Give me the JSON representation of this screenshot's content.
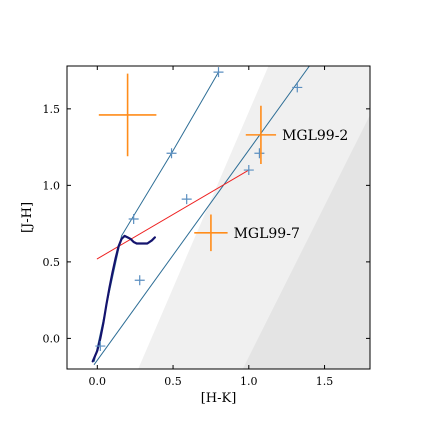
{
  "chart_data": {
    "type": "scatter",
    "title": "",
    "xlabel": "[H-K]",
    "ylabel": "[J-H]",
    "xlim": [
      -0.2,
      1.8
    ],
    "ylim": [
      -0.2,
      1.78
    ],
    "xticks": [
      0.0,
      0.5,
      1.0,
      1.5
    ],
    "xtick_labels": [
      "0.0",
      "0.5",
      "1.0",
      "1.5"
    ],
    "yticks": [
      0.0,
      0.5,
      1.0,
      1.5
    ],
    "ytick_labels": [
      "0.0",
      "0.5",
      "1.0",
      "1.5"
    ],
    "grid": false,
    "shaded_regions": [
      {
        "color": "#f0f0f0",
        "polygon": [
          [
            0.27,
            -0.2
          ],
          [
            1.13,
            1.78
          ],
          [
            1.8,
            1.78
          ],
          [
            1.8,
            -0.2
          ]
        ]
      },
      {
        "color": "#e4e4e4",
        "polygon": [
          [
            0.96,
            -0.2
          ],
          [
            1.8,
            1.46
          ],
          [
            1.8,
            -0.2
          ]
        ]
      }
    ],
    "reddening_lines": [
      {
        "color": "#2e6e96",
        "x": [
          -0.02,
          0.16,
          0.49,
          0.8
        ],
        "y": [
          -0.15,
          0.67,
          1.21,
          1.74
        ],
        "markers": [
          [
            0.24,
            0.78
          ],
          [
            0.49,
            1.21
          ],
          [
            0.8,
            1.74
          ]
        ]
      },
      {
        "color": "#2e6e96",
        "x": [
          -0.02,
          1.4
        ],
        "y": [
          -0.17,
          1.78
        ],
        "markers": [
          [
            0.02,
            -0.05
          ],
          [
            0.28,
            0.38
          ],
          [
            0.59,
            0.91
          ],
          [
            1.0,
            1.1
          ],
          [
            1.07,
            1.21
          ],
          [
            1.32,
            1.64
          ]
        ]
      }
    ],
    "ctts_locus": {
      "color": "#ee2222",
      "x": [
        0.0,
        1.0
      ],
      "y": [
        0.52,
        1.1
      ]
    },
    "dwarf_giant_locus": {
      "color": "#14146e",
      "x": [
        -0.03,
        0.0,
        0.02,
        0.04,
        0.06,
        0.08,
        0.1,
        0.12,
        0.14,
        0.16,
        0.18,
        0.2,
        0.22,
        0.24,
        0.26,
        0.28,
        0.3,
        0.33,
        0.36,
        0.38
      ],
      "y": [
        -0.15,
        -0.08,
        0.0,
        0.1,
        0.22,
        0.33,
        0.43,
        0.52,
        0.6,
        0.65,
        0.67,
        0.66,
        0.65,
        0.63,
        0.62,
        0.62,
        0.62,
        0.62,
        0.64,
        0.66
      ]
    },
    "error_crosses": [
      {
        "color": "#ff8c1a",
        "x": 0.2,
        "y": 1.46,
        "xerr": 0.19,
        "yerr": 0.27
      }
    ],
    "sources": [
      {
        "name": "MGL99-2",
        "x": 1.08,
        "y": 1.33,
        "xerr": 0.1,
        "yerr": 0.19,
        "color": "#ff8c1a"
      },
      {
        "name": "MGL99-7",
        "x": 0.75,
        "y": 0.69,
        "xerr": 0.11,
        "yerr": 0.12,
        "color": "#ff8c1a"
      }
    ]
  }
}
